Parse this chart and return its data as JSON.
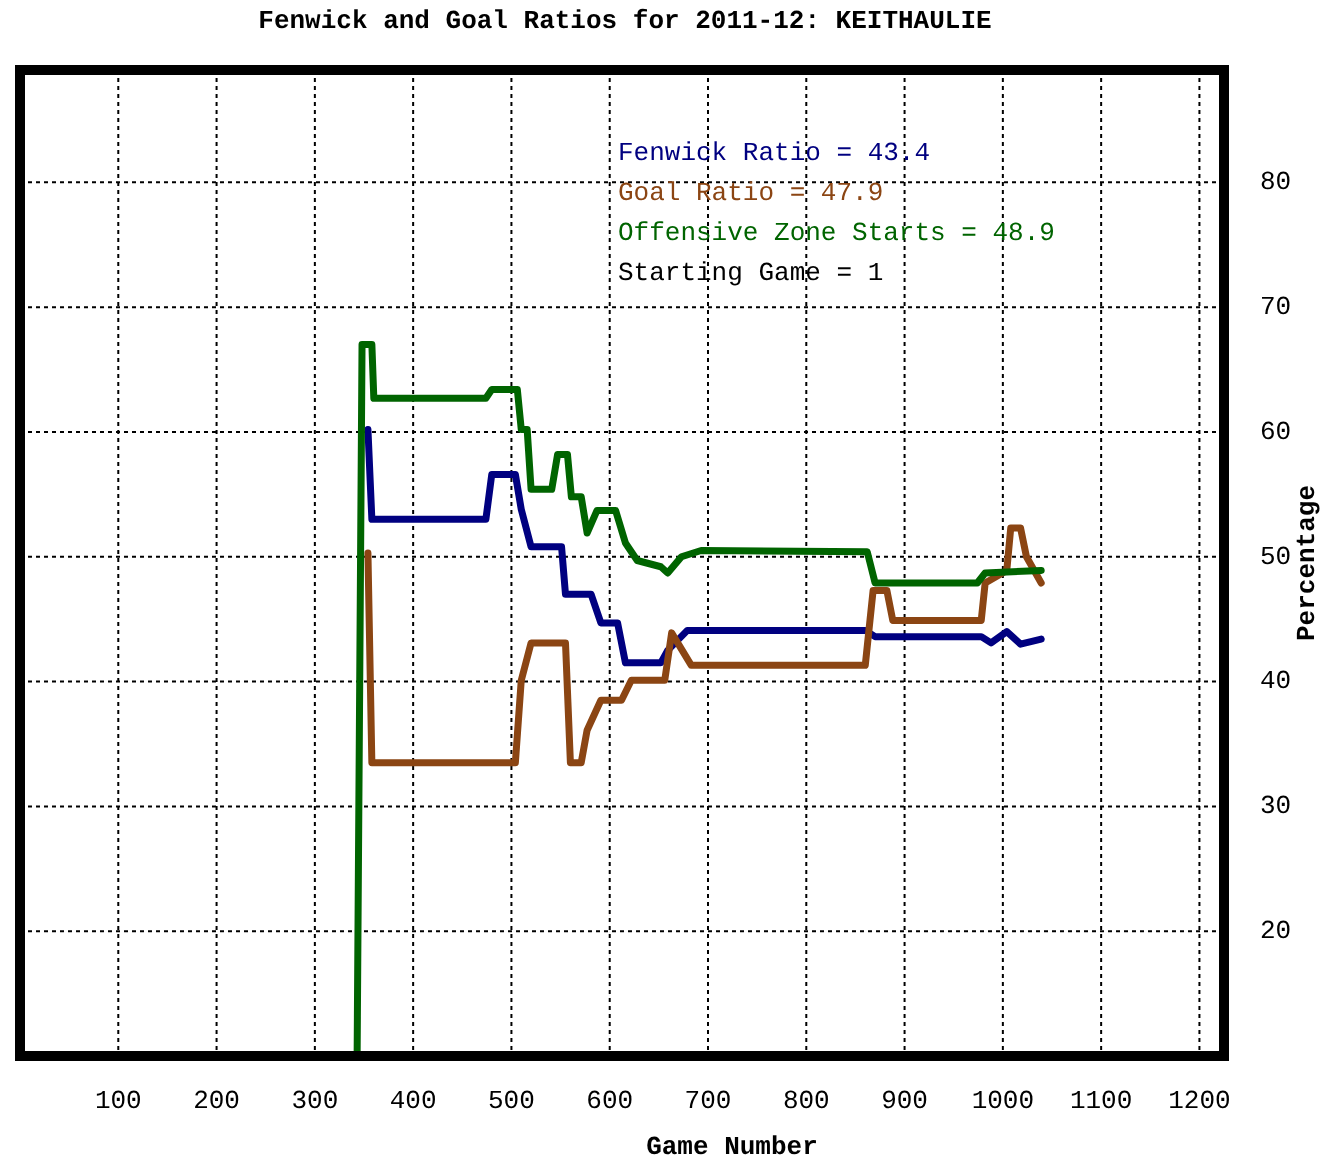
{
  "chart_data": {
    "type": "line",
    "title": "Fenwick and Goal Ratios for 2011-12: KEITHAULIE",
    "xlabel": "Game Number",
    "ylabel": "Percentage",
    "xlim": [
      0,
      1225
    ],
    "ylim": [
      10,
      89
    ],
    "xticks": [
      100,
      200,
      300,
      400,
      500,
      600,
      700,
      800,
      900,
      1000,
      1100,
      1200
    ],
    "yticks": [
      20,
      30,
      40,
      50,
      60,
      70,
      80
    ],
    "grid": true,
    "legend": "top right",
    "marker": "none",
    "line_style": "solid",
    "annotations": [
      "Starting Game = 1"
    ],
    "series": [
      {
        "name": "Fenwick Ratio = 43.4",
        "color": "#000080",
        "x": [
          354,
          358,
          474,
          480,
          504,
          510,
          520,
          551,
          555,
          581,
          591,
          608,
          616,
          652,
          659,
          679,
          860,
          870,
          978,
          988,
          1004,
          1018,
          1039
        ],
        "values": [
          60.2,
          53,
          53,
          56.6,
          56.6,
          53.8,
          50.8,
          50.8,
          47,
          47,
          44.7,
          44.7,
          41.5,
          41.5,
          42.5,
          44.1,
          44.1,
          43.6,
          43.6,
          43.1,
          44,
          43,
          43.4
        ]
      },
      {
        "name": "Goal Ratio = 47.9",
        "color": "#8b4513",
        "x": [
          354,
          358,
          504,
          510,
          520,
          555,
          560,
          571,
          577,
          591,
          612,
          622,
          656,
          663,
          683,
          860,
          868,
          882,
          888,
          978,
          982,
          1004,
          1008,
          1018,
          1024,
          1039
        ],
        "values": [
          50.3,
          33.5,
          33.5,
          40.1,
          43.1,
          43.1,
          33.5,
          33.5,
          36.1,
          38.5,
          38.5,
          40.1,
          40.1,
          43.9,
          41.3,
          41.3,
          47.3,
          47.3,
          44.9,
          44.9,
          47.9,
          48.9,
          52.3,
          52.3,
          50,
          47.9
        ]
      },
      {
        "name": "Offensive Zone Starts = 48.9",
        "color": "#006400",
        "x": [
          343,
          348,
          358,
          360,
          474,
          480,
          506,
          510,
          516,
          520,
          541,
          547,
          557,
          561,
          571,
          577,
          587,
          606,
          616,
          628,
          652,
          659,
          673,
          693,
          862,
          870,
          974,
          982,
          1039
        ],
        "values": [
          10,
          67,
          67,
          62.7,
          62.7,
          63.4,
          63.4,
          60.2,
          60.2,
          55.4,
          55.4,
          58.2,
          58.2,
          54.8,
          54.8,
          51.9,
          53.7,
          53.7,
          51.1,
          49.7,
          49.2,
          48.7,
          50,
          50.5,
          50.4,
          47.9,
          47.9,
          48.7,
          48.9
        ]
      }
    ]
  }
}
